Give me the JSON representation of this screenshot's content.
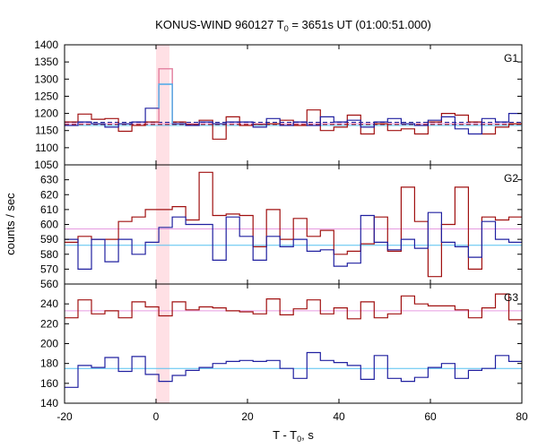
{
  "chart_data": {
    "type": "line",
    "title": {
      "prefix": "KONUS-WIND 960127 T",
      "sub": "0",
      "suffix": " = 3651s UT (01:00:51.000)"
    },
    "xlabel": {
      "prefix": "T - T",
      "sub": "0",
      "suffix": ", s"
    },
    "ylabel": "counts / sec",
    "xlim": [
      -20,
      80
    ],
    "x_ticks": [
      -20,
      0,
      20,
      40,
      60,
      80
    ],
    "x_tick_labels": [
      "-20",
      "0",
      "20",
      "40",
      "60",
      "80"
    ],
    "highlight_band": {
      "x": [
        0,
        2.944
      ],
      "color": "#ffd6dc"
    },
    "bin_edges": [
      -20,
      -17.056,
      -14.112,
      -11.168,
      -8.224,
      -5.28,
      -2.336,
      0.608,
      3.552,
      6.496,
      9.44,
      12.384,
      15.328,
      18.272,
      21.216,
      24.16,
      27.104,
      30.048,
      32.992,
      35.936,
      38.88,
      41.824,
      44.768,
      47.712,
      50.656,
      53.6,
      56.544,
      59.488,
      62.432,
      65.376,
      68.32,
      71.264,
      74.208,
      77.152,
      80.096
    ],
    "colors": {
      "red_series": "#a01010",
      "blue_series": "#2020a0",
      "pink_fit": "#e69ae0",
      "cyan_fit": "#55c0f0",
      "light_red": "#e88aaa",
      "light_blue": "#5ab8f0",
      "band": "#ffd6dc"
    },
    "panels": [
      {
        "label": "G1",
        "ylim": [
          1050,
          1400
        ],
        "y_ticks": [
          1050,
          1100,
          1150,
          1200,
          1250,
          1300,
          1350,
          1400
        ],
        "y_tick_labels": [
          "1050",
          "1100",
          "1150",
          "1200",
          "1250",
          "1300",
          "1350",
          "1400"
        ],
        "fits": [
          {
            "value": 1170,
            "color": "#e69ae0",
            "dash": false
          },
          {
            "value": 1165,
            "color": "#55c0f0",
            "dash": false
          },
          {
            "value": 1174,
            "color": "#1a1a90",
            "dash": true
          },
          {
            "value": 1168,
            "color": "#a01010",
            "dash": true
          }
        ],
        "series": [
          {
            "color": "#a01010",
            "values": [
              1175,
              1198,
              1183,
              1185,
              1148,
              1165,
              1175,
              1330,
              1175,
              1168,
              1180,
              1125,
              1190,
              1165,
              1168,
              1170,
              1180,
              1165,
              1210,
              1150,
              1160,
              1195,
              1140,
              1170,
              1150,
              1155,
              1140,
              1175,
              1200,
              1195,
              1175,
              1140,
              1160,
              1170
            ],
            "highlight": {
              "bin": 7,
              "color": "#e88aaa"
            }
          },
          {
            "color": "#2020a0",
            "values": [
              1165,
              1175,
              1170,
              1160,
              1170,
              1175,
              1215,
              1285,
              1170,
              1165,
              1175,
              1170,
              1175,
              1175,
              1160,
              1185,
              1165,
              1175,
              1165,
              1190,
              1175,
              1180,
              1160,
              1175,
              1185,
              1170,
              1165,
              1180,
              1190,
              1155,
              1140,
              1185,
              1175,
              1200
            ],
            "highlight": {
              "bin": 7,
              "color": "#5ab8f0"
            }
          }
        ]
      },
      {
        "label": "G2",
        "ylim": [
          560,
          640
        ],
        "y_ticks": [
          560,
          570,
          580,
          590,
          600,
          610,
          620,
          630
        ],
        "y_tick_labels": [
          "560",
          "570",
          "580",
          "590",
          "600",
          "610",
          "620",
          "630"
        ],
        "fits": [
          {
            "value": 597,
            "color": "#e69ae0",
            "dash": false
          },
          {
            "value": 586,
            "color": "#55c0f0",
            "dash": false
          }
        ],
        "series": [
          {
            "color": "#a01010",
            "values": [
              588,
              592,
              590,
              590,
              602,
              605,
              610,
              610,
              612,
              603,
              635,
              606,
              607,
              606,
              585,
              610,
              590,
              604,
              592,
              596,
              580,
              582,
              587,
              605,
              582,
              625,
              602,
              565,
              600,
              625,
              570,
              605,
              603,
              605
            ]
          },
          {
            "color": "#2020a0",
            "values": [
              590,
              570,
              590,
              575,
              590,
              580,
              588,
              598,
              605,
              600,
              600,
              576,
              605,
              592,
              576,
              592,
              585,
              590,
              582,
              583,
              572,
              574,
              606,
              588,
              583,
              590,
              584,
              608,
              588,
              585,
              578,
              602,
              590,
              588
            ]
          }
        ]
      },
      {
        "label": "G3",
        "ylim": [
          140,
          260
        ],
        "y_ticks": [
          140,
          160,
          180,
          200,
          220,
          240
        ],
        "y_tick_labels": [
          "140",
          "160",
          "180",
          "200",
          "220",
          "240"
        ],
        "fits": [
          {
            "value": 233,
            "color": "#e69ae0",
            "dash": false
          },
          {
            "value": 175,
            "color": "#55c0f0",
            "dash": false
          }
        ],
        "series": [
          {
            "color": "#a01010",
            "values": [
              226,
              244,
              230,
              233,
              226,
              242,
              237,
              228,
              242,
              234,
              237,
              236,
              233,
              232,
              230,
              245,
              229,
              235,
              244,
              230,
              236,
              225,
              242,
              226,
              230,
              248,
              240,
              238,
              238,
              234,
              226,
              236,
              250,
              224
            ]
          },
          {
            "color": "#2020a0",
            "values": [
              156,
              178,
              176,
              186,
              172,
              187,
              169,
              162,
              168,
              173,
              176,
              180,
              182,
              183,
              182,
              183,
              175,
              165,
              191,
              183,
              181,
              178,
              164,
              188,
              165,
              162,
              166,
              176,
              180,
              165,
              173,
              175,
              188,
              182
            ]
          }
        ]
      }
    ]
  }
}
